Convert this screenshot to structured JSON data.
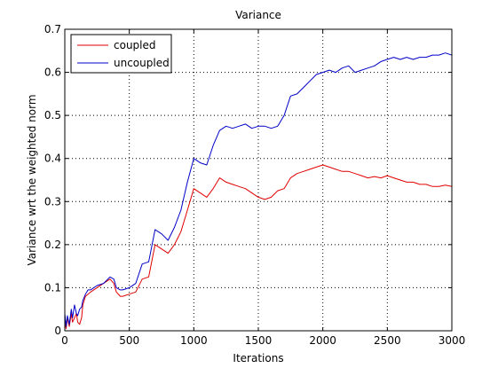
{
  "chart_data": {
    "type": "line",
    "title": "Variance",
    "xlabel": "Iterations",
    "ylabel": "Variance wrt the weighted norm",
    "xlim": [
      0,
      3000
    ],
    "ylim": [
      0,
      0.7
    ],
    "xticks": [
      0,
      500,
      1000,
      1500,
      2000,
      2500,
      3000
    ],
    "yticks": [
      0,
      0.1,
      0.2,
      0.3,
      0.4,
      0.5,
      0.6,
      0.7
    ],
    "xtick_labels": [
      "0",
      "500",
      "1000",
      "1500",
      "2000",
      "2500",
      "3000"
    ],
    "ytick_labels": [
      "0",
      "0.1",
      "0.2",
      "0.3",
      "0.4",
      "0.5",
      "0.6",
      "0.7"
    ],
    "grid": true,
    "legend_position": "top-left",
    "series": [
      {
        "name": "coupled",
        "color": "#e00000",
        "x": [
          0,
          10,
          20,
          35,
          50,
          60,
          75,
          90,
          100,
          115,
          130,
          140,
          160,
          180,
          200,
          250,
          300,
          350,
          380,
          400,
          430,
          450,
          500,
          550,
          600,
          650,
          700,
          750,
          800,
          850,
          900,
          950,
          1000,
          1050,
          1100,
          1150,
          1200,
          1250,
          1300,
          1350,
          1400,
          1450,
          1500,
          1550,
          1600,
          1650,
          1700,
          1750,
          1800,
          1850,
          1900,
          1950,
          2000,
          2050,
          2100,
          2150,
          2200,
          2250,
          2300,
          2350,
          2400,
          2450,
          2500,
          2550,
          2600,
          2650,
          2700,
          2750,
          2800,
          2850,
          2900,
          2950,
          3000
        ],
        "y": [
          0.02,
          0.005,
          0.03,
          0.01,
          0.04,
          0.02,
          0.03,
          0.04,
          0.02,
          0.015,
          0.03,
          0.06,
          0.08,
          0.085,
          0.09,
          0.1,
          0.11,
          0.12,
          0.11,
          0.09,
          0.08,
          0.08,
          0.085,
          0.09,
          0.12,
          0.125,
          0.2,
          0.19,
          0.18,
          0.2,
          0.23,
          0.28,
          0.33,
          0.32,
          0.31,
          0.33,
          0.355,
          0.345,
          0.34,
          0.335,
          0.33,
          0.32,
          0.31,
          0.305,
          0.31,
          0.325,
          0.33,
          0.355,
          0.365,
          0.37,
          0.375,
          0.38,
          0.385,
          0.38,
          0.375,
          0.37,
          0.37,
          0.365,
          0.36,
          0.355,
          0.358,
          0.355,
          0.36,
          0.355,
          0.35,
          0.345,
          0.345,
          0.34,
          0.34,
          0.335,
          0.335,
          0.338,
          0.335
        ]
      },
      {
        "name": "uncoupled",
        "color": "#0000c8",
        "x": [
          0,
          10,
          20,
          35,
          50,
          60,
          75,
          90,
          100,
          115,
          130,
          140,
          160,
          180,
          200,
          250,
          300,
          350,
          380,
          400,
          430,
          450,
          500,
          550,
          600,
          650,
          700,
          750,
          800,
          850,
          900,
          950,
          1000,
          1050,
          1100,
          1150,
          1200,
          1250,
          1300,
          1350,
          1400,
          1450,
          1500,
          1550,
          1600,
          1650,
          1700,
          1750,
          1800,
          1850,
          1900,
          1950,
          2000,
          2050,
          2100,
          2150,
          2200,
          2250,
          2300,
          2350,
          2400,
          2450,
          2500,
          2550,
          2600,
          2650,
          2700,
          2750,
          2800,
          2850,
          2900,
          2950,
          3000
        ],
        "y": [
          0.04,
          0.01,
          0.035,
          0.015,
          0.05,
          0.03,
          0.06,
          0.04,
          0.035,
          0.05,
          0.055,
          0.07,
          0.085,
          0.095,
          0.095,
          0.105,
          0.11,
          0.125,
          0.12,
          0.1,
          0.095,
          0.095,
          0.1,
          0.11,
          0.155,
          0.16,
          0.235,
          0.225,
          0.21,
          0.24,
          0.28,
          0.345,
          0.4,
          0.39,
          0.385,
          0.43,
          0.465,
          0.475,
          0.47,
          0.475,
          0.48,
          0.47,
          0.475,
          0.475,
          0.47,
          0.475,
          0.5,
          0.545,
          0.55,
          0.565,
          0.58,
          0.595,
          0.6,
          0.605,
          0.6,
          0.61,
          0.615,
          0.6,
          0.605,
          0.61,
          0.615,
          0.625,
          0.63,
          0.635,
          0.63,
          0.635,
          0.63,
          0.635,
          0.635,
          0.64,
          0.64,
          0.645,
          0.64
        ]
      }
    ]
  }
}
